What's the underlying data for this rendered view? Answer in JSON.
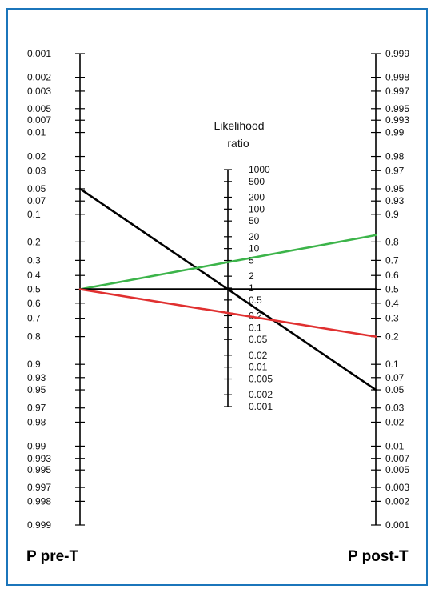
{
  "colors": {
    "frame": "#1b75bb",
    "axis": "#000000",
    "line_black": "#000000",
    "line_green": "#3cb44a",
    "line_red": "#e03030"
  },
  "left_axis": {
    "name": "P pre-T",
    "tick_labels": [
      "0.001",
      "0.002",
      "0.003",
      "0.005",
      "0.007",
      "0.01",
      "0.02",
      "0.03",
      "0.05",
      "0.07",
      "0.1",
      "0.2",
      "0.3",
      "0.4",
      "0.5",
      "0.6",
      "0.7",
      "0.8",
      "0.9",
      "0.93",
      "0.95",
      "0.97",
      "0.98",
      "0.99",
      "0.993",
      "0.995",
      "0.997",
      "0.998",
      "0.999"
    ]
  },
  "right_axis": {
    "name": "P post-T",
    "tick_labels": [
      "0.999",
      "0.998",
      "0.997",
      "0.995",
      "0.993",
      "0.99",
      "0.98",
      "0.97",
      "0.95",
      "0.93",
      "0.9",
      "0.8",
      "0.7",
      "0.6",
      "0.5",
      "0.4",
      "0.3",
      "0.2",
      "0.1",
      "0.07",
      "0.05",
      "0.03",
      "0.02",
      "0.01",
      "0.007",
      "0.005",
      "0.003",
      "0.002",
      "0.001"
    ]
  },
  "lr_axis": {
    "title_line1": "Likelihood",
    "title_line2": "ratio",
    "tick_labels": [
      "1000",
      "500",
      "200",
      "100",
      "50",
      "20",
      "10",
      "5",
      "2",
      "1",
      "0.5",
      "0.2",
      "0.1",
      "0.05",
      "0.02",
      "0.01",
      "0.005",
      "0.002",
      "0.001"
    ]
  },
  "lines": [
    {
      "name": "black-steep",
      "color_key": "line_black",
      "pre_test": 0.05,
      "likelihood_ratio": 1,
      "post_test": 0.05
    },
    {
      "name": "green",
      "color_key": "line_green",
      "pre_test": 0.5,
      "likelihood_ratio": 5,
      "post_test": 0.83
    },
    {
      "name": "black-flat",
      "color_key": "line_black",
      "pre_test": 0.5,
      "likelihood_ratio": 1,
      "post_test": 0.5
    },
    {
      "name": "red",
      "color_key": "line_red",
      "pre_test": 0.5,
      "likelihood_ratio": 0.2,
      "post_test": 0.2
    }
  ]
}
